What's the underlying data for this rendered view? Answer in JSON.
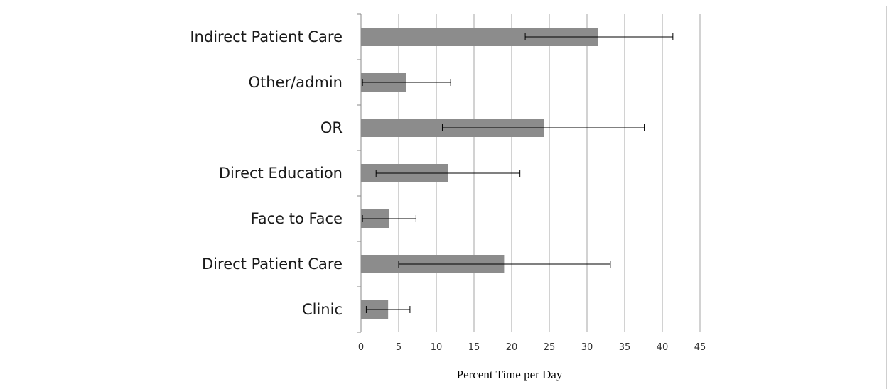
{
  "chart_data": {
    "type": "bar",
    "orientation": "horizontal",
    "categories": [
      "Indirect Patient Care",
      "Other/admin",
      "OR",
      "Direct Education",
      "Face to Face",
      "Direct Patient Care",
      "Clinic"
    ],
    "values": [
      31.5,
      6.0,
      24.3,
      11.6,
      3.7,
      19.0,
      3.6
    ],
    "error_low": [
      21.8,
      0.2,
      10.8,
      2.0,
      0.2,
      5.0,
      0.7
    ],
    "error_high": [
      41.4,
      11.9,
      37.6,
      21.1,
      7.3,
      33.1,
      6.5
    ],
    "xlabel": "Percent Time per Day",
    "ylabel": "",
    "xlim": [
      0,
      45
    ],
    "xticks": [
      "0",
      "5",
      "10",
      "15",
      "20",
      "25",
      "30",
      "35",
      "40",
      "45"
    ],
    "grid": "vertical",
    "legend": "none",
    "bar_color": "#8c8c8c",
    "grid_color": "#a6a6a6"
  }
}
